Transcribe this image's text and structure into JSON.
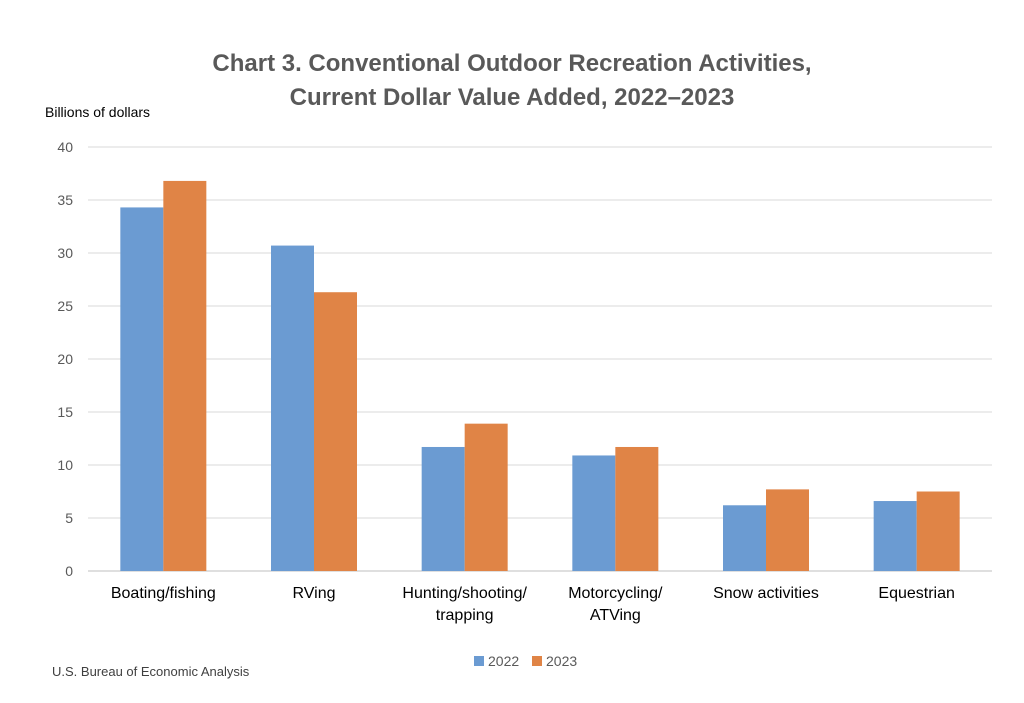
{
  "chart_data": {
    "type": "bar",
    "title_line1": "Chart 3. Conventional Outdoor Recreation Activities,",
    "title_line2": "Current Dollar Value Added, 2022–2023",
    "ylabel": "Billions of dollars",
    "xlabel": "",
    "categories": [
      [
        "Boating/fishing"
      ],
      [
        "RVing"
      ],
      [
        "Hunting/shooting/",
        "trapping"
      ],
      [
        "Motorcycling/",
        "ATVing"
      ],
      [
        "Snow activities"
      ],
      [
        "Equestrian"
      ]
    ],
    "series": [
      {
        "name": "2022",
        "color": "#6b9bd2",
        "values": [
          34.3,
          30.7,
          11.7,
          10.9,
          6.2,
          6.6
        ]
      },
      {
        "name": "2023",
        "color": "#e08446",
        "values": [
          36.8,
          26.3,
          13.9,
          11.7,
          7.7,
          7.5
        ]
      }
    ],
    "ylim": [
      0,
      40
    ],
    "yticks": [
      0,
      5,
      10,
      15,
      20,
      25,
      30,
      35,
      40
    ],
    "grid": true,
    "legend_placement": "bottom-center",
    "source": "U.S. Bureau of Economic Analysis"
  }
}
